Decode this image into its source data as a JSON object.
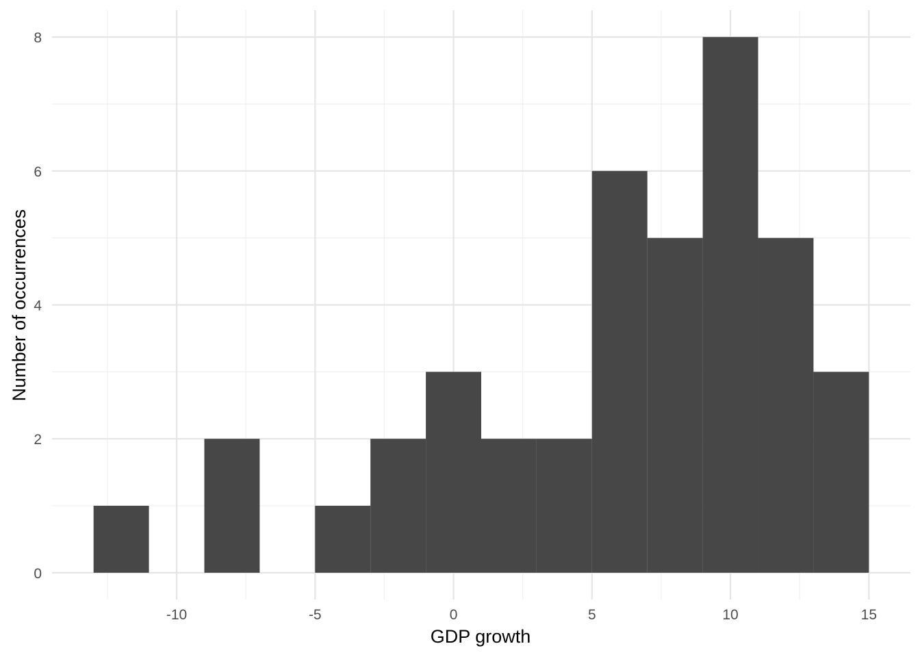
{
  "chart_data": {
    "type": "bar",
    "subtype": "histogram",
    "xlabel": "GDP growth",
    "ylabel": "Number of occurrences",
    "xlim": [
      -14.5,
      16.5
    ],
    "ylim": [
      -0.4,
      8.4
    ],
    "x_ticks": [
      -10,
      -5,
      0,
      5,
      10,
      15
    ],
    "x_tick_labels": [
      "-10",
      "-5",
      "0",
      "5",
      "10",
      "15"
    ],
    "y_ticks": [
      0,
      2,
      4,
      6,
      8
    ],
    "y_tick_labels": [
      "0",
      "2",
      "4",
      "6",
      "8"
    ],
    "bin_width": 2,
    "bins": [
      {
        "x0": -13,
        "x1": -11,
        "count": 1
      },
      {
        "x0": -11,
        "x1": -9,
        "count": 0
      },
      {
        "x0": -9,
        "x1": -7,
        "count": 2
      },
      {
        "x0": -7,
        "x1": -5,
        "count": 0
      },
      {
        "x0": -5,
        "x1": -3,
        "count": 1
      },
      {
        "x0": -3,
        "x1": -1,
        "count": 2
      },
      {
        "x0": -1,
        "x1": 1,
        "count": 3
      },
      {
        "x0": 1,
        "x1": 3,
        "count": 2
      },
      {
        "x0": 3,
        "x1": 5,
        "count": 2
      },
      {
        "x0": 5,
        "x1": 7,
        "count": 6
      },
      {
        "x0": 7,
        "x1": 9,
        "count": 5
      },
      {
        "x0": 9,
        "x1": 11,
        "count": 8
      },
      {
        "x0": 11,
        "x1": 13,
        "count": 5
      },
      {
        "x0": 13,
        "x1": 15,
        "count": 3
      }
    ],
    "grid": true,
    "legend": "none",
    "colors": {
      "bar_fill": "#474747",
      "background": "#ffffff",
      "grid_major": "#e5e5e5",
      "grid_minor": "#f0f0f0",
      "tick_label": "#4d4d4d",
      "axis_title": "#000000"
    }
  }
}
